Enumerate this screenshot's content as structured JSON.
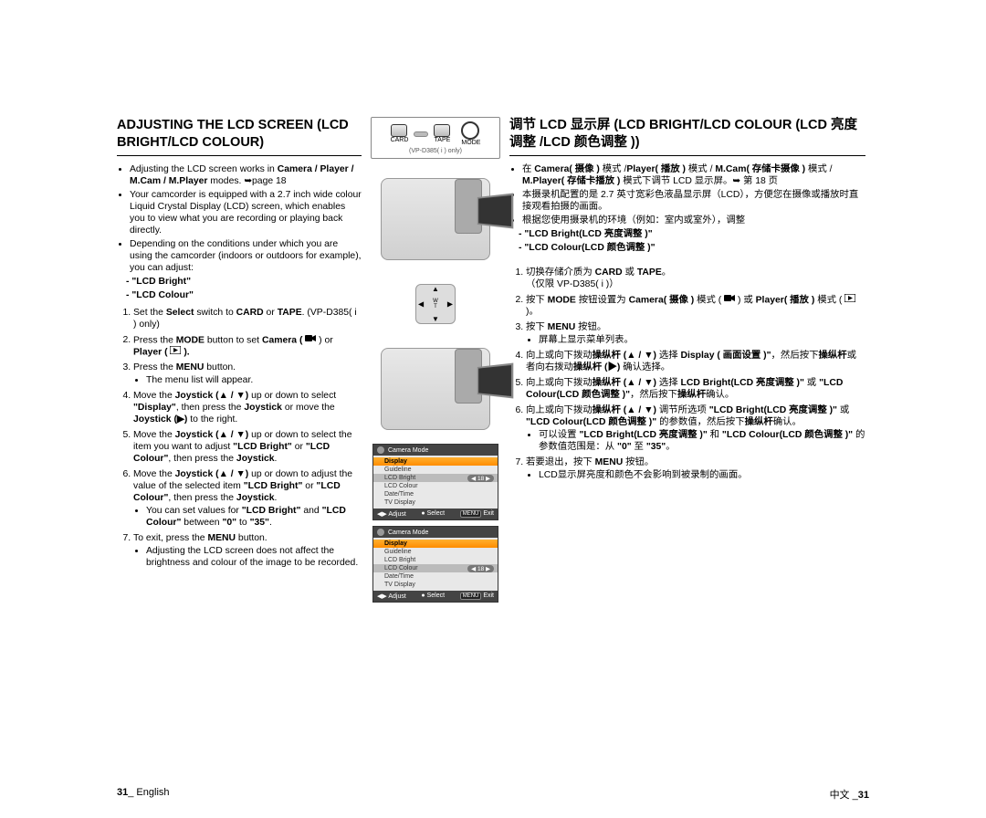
{
  "left": {
    "title": "ADJUSTING THE LCD SCREEN (LCD BRIGHT/LCD COLOUR)",
    "bul1": "Adjusting the LCD screen works in ",
    "bul1_b": "Camera / Player / M.Cam / M.Player ",
    "bul1_end": "modes. ➥page 18",
    "bul2": "Your camcorder is equipped with a 2.7 inch wide colour Liquid Crystal Display (LCD) screen, which enables you to view what you are recording or playing back directly.",
    "bul3": "Depending on the conditions under which you are using the camcorder (indoors or outdoors for example), you can adjust:",
    "sub_a": "\"LCD Bright\"",
    "sub_b": "\"LCD Colour\"",
    "s1a": "Set the ",
    "s1b": "Select",
    "s1c": " switch to ",
    "s1d": "CARD",
    "s1e": " or ",
    "s1f": "TAPE",
    "s1g": ". (VP-D385( i ) only)",
    "s2a": "Press the ",
    "s2b": "MODE",
    "s2c": " button to set ",
    "s2d": "Camera ( ",
    "s2e": " ) or ",
    "s2f": "Player ( ",
    "s2g": " ).",
    "s3a": "Press the ",
    "s3b": "MENU",
    "s3c": " button.",
    "s3_sub": "The menu list will appear.",
    "s4a": "Move the ",
    "s4b": "Joystick (▲ / ▼)",
    "s4c": " up or down to select ",
    "s4d": "\"Display\"",
    "s4e": ", then press the ",
    "s4f": "Joystick",
    "s4g": " or move the ",
    "s4h": "Joystick (▶)",
    "s4i": " to the right.",
    "s5a": "Move the ",
    "s5b": "Joystick (▲ / ▼)",
    "s5c": " up or down to select the item you want to adjust ",
    "s5d": "\"LCD Bright\"",
    "s5e": " or ",
    "s5f": "\"LCD Colour\"",
    "s5g": ", then press the ",
    "s5h": "Joystick",
    "s5i": ".",
    "s6a": "Move the ",
    "s6b": "Joystick (▲ / ▼)",
    "s6c": " up or down to adjust the value of the selected item ",
    "s6d": "\"LCD Bright\"",
    "s6e": " or ",
    "s6f": "\"LCD Colour\"",
    "s6g": ", then press the ",
    "s6h": "Joystick",
    "s6i": ".",
    "s6_sub_a": "You can set values for ",
    "s6_sub_b": "\"LCD Bright\"",
    "s6_sub_c": " and ",
    "s6_sub_d": "\"LCD Colour\"",
    "s6_sub_e": " between ",
    "s6_sub_f": "\"0\"",
    "s6_sub_g": " to ",
    "s6_sub_h": "\"35\"",
    "s6_sub_i": ".",
    "s7a": "To exit, press the ",
    "s7b": "MENU",
    "s7c": " button.",
    "s7_sub": "Adjusting the LCD screen does not affect the brightness and colour of the image to be recorded."
  },
  "center": {
    "card": "CARD",
    "tape": "TAPE",
    "mode": "MODE",
    "only": "(VP-D385( i ) only)",
    "menu1": {
      "title": "Camera Mode",
      "items": [
        "Display",
        "Guideline",
        "LCD Bright",
        "LCD Colour",
        "Date/Time",
        "TV Display"
      ],
      "hi": 0,
      "sel": 2,
      "val": "18",
      "adjust": "◀▶ Adjust",
      "select": "● Select",
      "exit": "MENU",
      "exitlabel": "Exit"
    },
    "menu2": {
      "title": "Camera Mode",
      "items": [
        "Display",
        "Guideline",
        "LCD Bright",
        "LCD Colour",
        "Date/Time",
        "TV Display"
      ],
      "hi": 0,
      "sel": 3,
      "val": "18",
      "adjust": "◀▶ Adjust",
      "select": "● Select",
      "exit": "MENU",
      "exitlabel": "Exit"
    }
  },
  "right": {
    "title": "调节 LCD 显示屏 (LCD BRIGHT/LCD COLOUR (LCD 亮度调整 /LCD 颜色调整 ))",
    "bul1": "在 Camera( 摄像 ) 模式 /Player( 播放 ) 模式 / M.Cam( 存储卡摄像 ) 模式 / M.Player( 存储卡播放 ) 模式下调节 LCD 显示屏。➥ 第 18 页",
    "bul1_nb": "在 ",
    "bul2": "本摄录机配置的是 2.7 英寸宽彩色液晶显示屏（LCD），方便您在摄像或播放时直接观看拍摄的画面。",
    "bul3": "根据您使用摄录机的环境（例如：室内或室外），调整",
    "sub_a": "\"LCD Bright(LCD 亮度调整 )\"",
    "sub_b": "\"LCD Colour(LCD 颜色调整 )\"",
    "s1a": "切换存储介质为 ",
    "s1b": "CARD",
    "s1c": " 或 ",
    "s1d": "TAPE",
    "s1e": "。",
    "s1f": "（仅限 VP-D385( i )）",
    "s2a": "按下 ",
    "s2b": "MODE",
    "s2c": " 按钮设置为 ",
    "s2d": "Camera( 摄像 )",
    "s2e": " 模式 ( ",
    "s2f": " ) 或 ",
    "s2g": "Player( 播放 )",
    "s2h": " 模式 ( ",
    "s2i": " )。",
    "s3a": "按下 ",
    "s3b": "MENU",
    "s3c": " 按钮。",
    "s3_sub": "屏幕上显示菜单列表。",
    "s4a": "向上或向下拨动",
    "s4b": "操纵杆 (▲ / ▼)",
    "s4c": " 选择 ",
    "s4d": "Display ( 画面设置 )\"",
    "s4e": "，然后按下",
    "s4f": "操纵杆",
    "s4g": "或者向右拨动",
    "s4h": "操纵杆 (▶)",
    "s4i": " 确认选择。",
    "s5a": "向上或向下拨动",
    "s5b": "操纵杆 (▲ / ▼)",
    "s5c": " 选择 ",
    "s5d": "LCD Bright(LCD 亮度调整 )\"",
    "s5e": " 或 ",
    "s5f": "\"LCD Colour(LCD 颜色调整 )\"",
    "s5g": "，然后按下",
    "s5h": "操纵杆",
    "s5i": "确认。",
    "s6a": "向上或向下拨动",
    "s6b": "操纵杆 (▲ / ▼)",
    "s6c": " 调节所选项 ",
    "s6d": "\"LCD Bright(LCD 亮度调整 )\"",
    "s6e": " 或 ",
    "s6f": "\"LCD Colour(LCD 颜色调整 )\"",
    "s6g": " 的参数值，然后按下",
    "s6h": "操纵杆",
    "s6i": "确认。",
    "s6_sub_a": "可以设置 ",
    "s6_sub_b": "\"LCD Bright(LCD 亮度调整 )\"",
    "s6_sub_c": " 和 ",
    "s6_sub_d": "\"LCD Colour(LCD 颜色调整 )\"",
    "s6_sub_e": " 的参数值范围是：从 ",
    "s6_sub_f": "\"0\"",
    "s6_sub_g": " 至 ",
    "s6_sub_h": "\"35\"",
    "s6_sub_i": "。",
    "s7a": "若要退出，按下 ",
    "s7b": "MENU",
    "s7c": " 按钮。",
    "s7_sub": "LCD显示屏亮度和颜色不会影响到被录制的画面。"
  },
  "footer": {
    "left_num": "31",
    "left_lang": "_ English",
    "right_lang": "中文 _",
    "right_num": "31"
  }
}
